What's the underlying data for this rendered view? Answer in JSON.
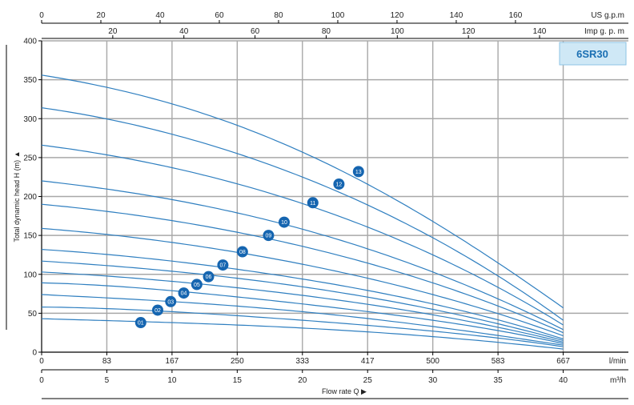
{
  "model": "6SR30",
  "colors": {
    "curve": "#2f7fc0",
    "badge": "#1565b0",
    "grid": "#a8a8a8",
    "model_box_fill": "#cfe8f6",
    "model_box_stroke": "#8ec3e4"
  },
  "axes": {
    "y_title": "Total dynamic head H (m)",
    "y_ticks": [
      "0",
      "50",
      "100",
      "150",
      "200",
      "250",
      "300",
      "350",
      "400"
    ],
    "x_title": "Flow rate Q",
    "lmin": {
      "unit": "l/min",
      "ticks": [
        "0",
        "83",
        "167",
        "250",
        "333",
        "417",
        "500",
        "583",
        "667"
      ]
    },
    "m3h": {
      "unit": "m³/h",
      "ticks": [
        "0",
        "5",
        "10",
        "15",
        "20",
        "25",
        "30",
        "35",
        "40"
      ]
    },
    "usgpm": {
      "unit": "US g.p.m",
      "ticks": [
        "0",
        "20",
        "40",
        "60",
        "80",
        "100",
        "120",
        "140",
        "160"
      ]
    },
    "impgpm": {
      "unit": "Imp g. p. m",
      "ticks": [
        "20",
        "40",
        "60",
        "80",
        "100",
        "120",
        "140"
      ]
    }
  },
  "chart_data": {
    "type": "line",
    "title": "6SR30",
    "xlabel": "Flow rate Q (m³/h)",
    "ylabel": "Total dynamic head H (m)",
    "xlim": [
      0,
      45
    ],
    "ylim": [
      0,
      400
    ],
    "grid": true,
    "series": [
      {
        "name": "01",
        "x": [
          0,
          10,
          20,
          30,
          40
        ],
        "y": [
          43,
          38,
          31,
          20,
          4
        ],
        "label_at": [
          7.6,
          38
        ]
      },
      {
        "name": "02",
        "x": [
          0,
          10,
          20,
          30,
          40
        ],
        "y": [
          58,
          52,
          41,
          27,
          7
        ],
        "label_at": [
          8.9,
          54
        ]
      },
      {
        "name": "03",
        "x": [
          0,
          10,
          20,
          30,
          40
        ],
        "y": [
          74,
          65,
          52,
          33,
          9
        ],
        "label_at": [
          9.9,
          65
        ]
      },
      {
        "name": "04",
        "x": [
          0,
          10,
          20,
          30,
          40
        ],
        "y": [
          89,
          79,
          62,
          41,
          11
        ],
        "label_at": [
          10.9,
          76
        ]
      },
      {
        "name": "05",
        "x": [
          0,
          10,
          20,
          30,
          40
        ],
        "y": [
          103,
          91,
          73,
          48,
          13
        ],
        "label_at": [
          11.9,
          87
        ]
      },
      {
        "name": "06",
        "x": [
          0,
          10,
          20,
          30,
          40
        ],
        "y": [
          117,
          104,
          84,
          55,
          15
        ],
        "label_at": [
          12.8,
          97
        ]
      },
      {
        "name": "07",
        "x": [
          0,
          10,
          20,
          30,
          40
        ],
        "y": [
          132,
          117,
          94,
          62,
          17
        ],
        "label_at": [
          13.9,
          112
        ]
      },
      {
        "name": "08",
        "x": [
          0,
          10,
          20,
          30,
          40
        ],
        "y": [
          159,
          141,
          113,
          74,
          21
        ],
        "label_at": [
          15.4,
          129
        ]
      },
      {
        "name": "09",
        "x": [
          0,
          10,
          20,
          30,
          40
        ],
        "y": [
          190,
          169,
          136,
          89,
          25
        ],
        "label_at": [
          17.4,
          150
        ]
      },
      {
        "name": "10",
        "x": [
          0,
          10,
          20,
          30,
          40
        ],
        "y": [
          220,
          196,
          158,
          103,
          29
        ],
        "label_at": [
          18.6,
          167
        ]
      },
      {
        "name": "11",
        "x": [
          0,
          10,
          20,
          30,
          40
        ],
        "y": [
          266,
          237,
          191,
          125,
          35
        ],
        "label_at": [
          20.8,
          192
        ]
      },
      {
        "name": "12",
        "x": [
          0,
          10,
          20,
          30,
          40
        ],
        "y": [
          314,
          280,
          225,
          147,
          41
        ],
        "label_at": [
          22.8,
          216
        ]
      },
      {
        "name": "13",
        "x": [
          0,
          10,
          20,
          30,
          40
        ],
        "y": [
          356,
          319,
          257,
          168,
          57
        ],
        "label_at": [
          24.3,
          232
        ]
      }
    ]
  }
}
